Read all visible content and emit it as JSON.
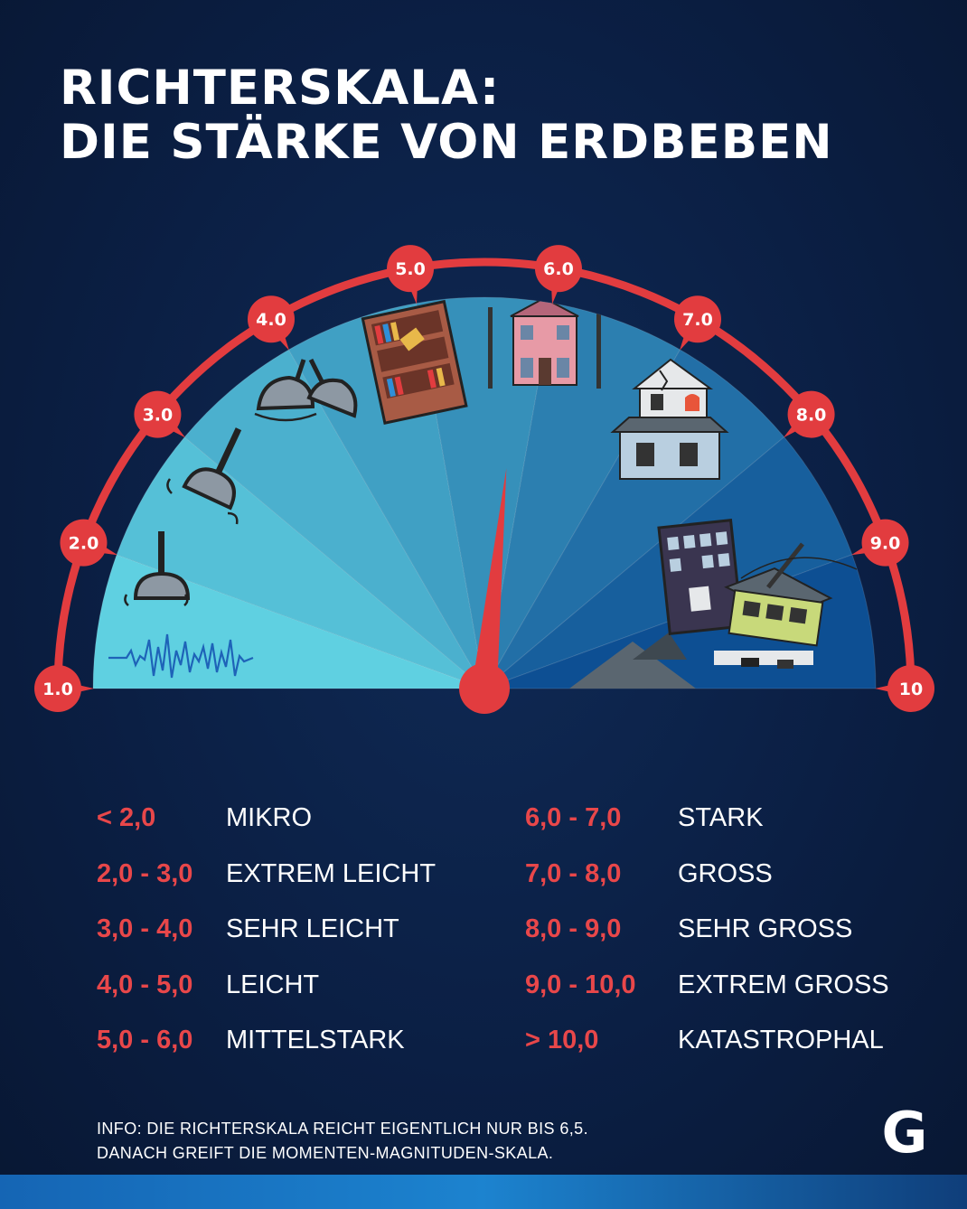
{
  "title": {
    "line1": "RICHTERSKALA:",
    "line2": "DIE STÄRKE VON ERDBEBEN"
  },
  "gauge": {
    "scale_labels": [
      "1.0",
      "2.0",
      "3.0",
      "4.0",
      "5.0",
      "6.0",
      "7.0",
      "8.0",
      "9.0",
      "10"
    ],
    "needle_value": 6.0,
    "colors": {
      "arc": "#e23c3f",
      "sector_light": "#5fd0e1",
      "sector_dark": "#0d4f93",
      "background": "#0b1f44"
    },
    "icons": [
      "seismograph-wave-icon",
      "swinging-lamp-icon",
      "swinging-lamp-icon",
      "double-lamp-icon",
      "falling-bookshelf-icon",
      "house-icon",
      "cracked-house-icon",
      "collapsed-buildings-icon"
    ]
  },
  "legend": {
    "left": [
      {
        "range": "< 2,0",
        "label": "MIKRO"
      },
      {
        "range": "2,0 - 3,0",
        "label": "EXTREM LEICHT"
      },
      {
        "range": "3,0 - 4,0",
        "label": "SEHR LEICHT"
      },
      {
        "range": "4,0 - 5,0",
        "label": "LEICHT"
      },
      {
        "range": "5,0 - 6,0",
        "label": "MITTELSTARK"
      }
    ],
    "right": [
      {
        "range": "6,0 - 7,0",
        "label": "STARK"
      },
      {
        "range": "7,0 - 8,0",
        "label": "GROSS"
      },
      {
        "range": "8,0 - 9,0",
        "label": "SEHR GROSS"
      },
      {
        "range": "9,0 - 10,0",
        "label": "EXTREM GROSS"
      },
      {
        "range": "> 10,0",
        "label": "KATASTROPHAL"
      }
    ]
  },
  "info": {
    "line1": "INFO: DIE RICHTERSKALA REICHT EIGENTLICH NUR BIS 6,5.",
    "line2": "DANACH GREIFT DIE MOMENTEN-MAGNITUDEN-SKALA."
  },
  "logo": {
    "text": "G"
  }
}
